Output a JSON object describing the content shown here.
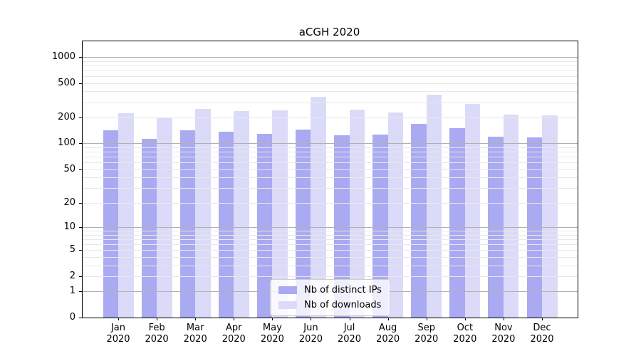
{
  "title": "aCGH 2020",
  "chart_data": {
    "type": "bar",
    "title": "aCGH 2020",
    "xlabel": "",
    "ylabel": "",
    "scale": "log1p",
    "grid": true,
    "legend_position": "lower center",
    "x_labels": [
      [
        "Jan",
        "2020"
      ],
      [
        "Feb",
        "2020"
      ],
      [
        "Mar",
        "2020"
      ],
      [
        "Apr",
        "2020"
      ],
      [
        "May",
        "2020"
      ],
      [
        "Jun",
        "2020"
      ],
      [
        "Jul",
        "2020"
      ],
      [
        "Aug",
        "2020"
      ],
      [
        "Sep",
        "2020"
      ],
      [
        "Oct",
        "2020"
      ],
      [
        "Nov",
        "2020"
      ],
      [
        "Dec",
        "2020"
      ]
    ],
    "series": [
      {
        "name": "Nb of distinct IPs",
        "color": "#aaaaf2",
        "values": [
          143,
          113,
          143,
          138,
          130,
          146,
          124,
          127,
          168,
          151,
          120,
          117
        ]
      },
      {
        "name": "Nb of downloads",
        "color": "#dbdbf9",
        "values": [
          225,
          201,
          253,
          237,
          240,
          345,
          245,
          227,
          364,
          288,
          216,
          212
        ]
      }
    ],
    "y_ticks": [
      1000,
      500,
      200,
      100,
      50,
      20,
      10,
      5,
      2,
      1,
      0
    ],
    "y_gridlines_major": [
      1000,
      100,
      10,
      1
    ],
    "y_gridlines_light": [
      500,
      200,
      50,
      20,
      5,
      2,
      900,
      800,
      700,
      600,
      400,
      300,
      90,
      80,
      70,
      60,
      40,
      30,
      9,
      8,
      7,
      6,
      4,
      3
    ],
    "ylim": [
      0,
      1514
    ],
    "colors": {
      "grid_major": "#b0b0b0",
      "grid_minor": "#e8e8e8",
      "spine": "#000000",
      "legend_border": "#cccccc",
      "legend_background": "rgba(255,255,255,0.8)",
      "bar_distinct_ips": "#aaaaf2",
      "bar_downloads": "#dbdbf9"
    }
  }
}
